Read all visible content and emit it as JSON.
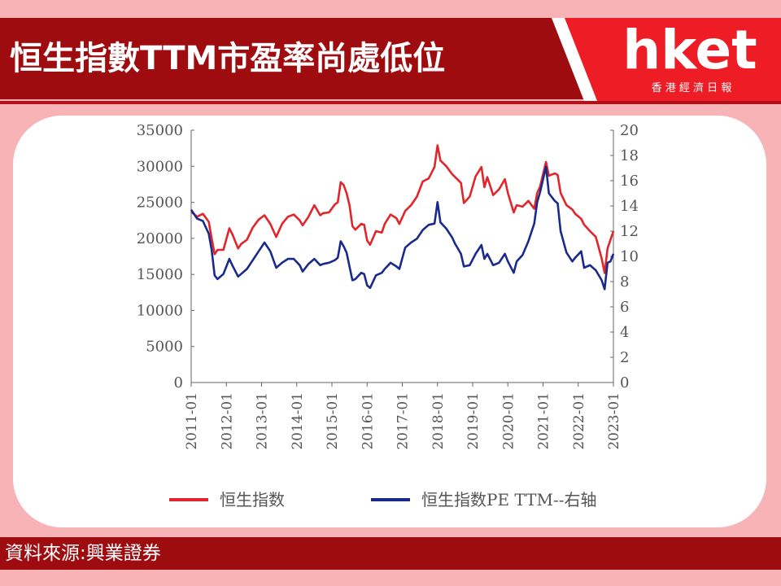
{
  "header": {
    "title": "恒生指數TTM市盈率尚處低位"
  },
  "logo": {
    "brand": "hket",
    "subtitle": "香 港 經 濟 日 報",
    "color": "#ee1c25"
  },
  "footer": {
    "source": "資料來源:興業證券"
  },
  "colors": {
    "series_red": "#e0262a",
    "series_blue": "#1a2a8c",
    "banner": "#9e0c10",
    "background": "#f7b3b5"
  },
  "chart_data": {
    "type": "line",
    "title": "",
    "x_ticks": [
      "2011-01",
      "2012-01",
      "2013-01",
      "2014-01",
      "2015-01",
      "2016-01",
      "2017-01",
      "2018-01",
      "2019-01",
      "2020-01",
      "2021-01",
      "2022-01",
      "2023-01"
    ],
    "y_left": {
      "min": 0,
      "max": 35000,
      "ticks": [
        0,
        5000,
        10000,
        15000,
        20000,
        25000,
        30000,
        35000
      ]
    },
    "y_right": {
      "min": 0,
      "max": 20,
      "ticks": [
        0,
        2,
        4,
        6,
        8,
        10,
        12,
        14,
        16,
        18,
        20
      ]
    },
    "legend_position": "bottom",
    "series": [
      {
        "name": "恒生指数",
        "axis": "left",
        "color": "#e0262a",
        "points": [
          [
            "2011-01",
            23700
          ],
          [
            "2011-03",
            23000
          ],
          [
            "2011-05",
            23400
          ],
          [
            "2011-07",
            22300
          ],
          [
            "2011-08",
            20000
          ],
          [
            "2011-09",
            17800
          ],
          [
            "2011-10",
            18400
          ],
          [
            "2011-12",
            18400
          ],
          [
            "2012-02",
            21400
          ],
          [
            "2012-03",
            20600
          ],
          [
            "2012-05",
            18600
          ],
          [
            "2012-06",
            19200
          ],
          [
            "2012-08",
            19800
          ],
          [
            "2012-10",
            21500
          ],
          [
            "2012-12",
            22600
          ],
          [
            "2013-02",
            23200
          ],
          [
            "2013-04",
            22000
          ],
          [
            "2013-06",
            20200
          ],
          [
            "2013-08",
            22000
          ],
          [
            "2013-10",
            23000
          ],
          [
            "2013-12",
            23300
          ],
          [
            "2014-02",
            22500
          ],
          [
            "2014-03",
            21800
          ],
          [
            "2014-05",
            23000
          ],
          [
            "2014-07",
            24600
          ],
          [
            "2014-09",
            23200
          ],
          [
            "2014-10",
            23500
          ],
          [
            "2014-12",
            23600
          ],
          [
            "2015-02",
            24700
          ],
          [
            "2015-03",
            25000
          ],
          [
            "2015-04",
            27800
          ],
          [
            "2015-05",
            27400
          ],
          [
            "2015-06",
            26300
          ],
          [
            "2015-07",
            24600
          ],
          [
            "2015-08",
            21700
          ],
          [
            "2015-09",
            21200
          ],
          [
            "2015-11",
            22000
          ],
          [
            "2015-12",
            21900
          ],
          [
            "2016-01",
            19700
          ],
          [
            "2016-02",
            19100
          ],
          [
            "2016-04",
            21000
          ],
          [
            "2016-06",
            20800
          ],
          [
            "2016-07",
            22000
          ],
          [
            "2016-09",
            23300
          ],
          [
            "2016-11",
            22800
          ],
          [
            "2016-12",
            22000
          ],
          [
            "2017-02",
            23800
          ],
          [
            "2017-04",
            24600
          ],
          [
            "2017-06",
            25800
          ],
          [
            "2017-08",
            27900
          ],
          [
            "2017-10",
            28300
          ],
          [
            "2017-12",
            29900
          ],
          [
            "2018-01",
            32900
          ],
          [
            "2018-02",
            30800
          ],
          [
            "2018-04",
            30000
          ],
          [
            "2018-06",
            28900
          ],
          [
            "2018-07",
            28500
          ],
          [
            "2018-09",
            27700
          ],
          [
            "2018-10",
            24900
          ],
          [
            "2018-12",
            25800
          ],
          [
            "2019-02",
            28600
          ],
          [
            "2019-04",
            29900
          ],
          [
            "2019-05",
            27100
          ],
          [
            "2019-06",
            28500
          ],
          [
            "2019-08",
            26000
          ],
          [
            "2019-10",
            26800
          ],
          [
            "2019-12",
            28200
          ],
          [
            "2020-01",
            26300
          ],
          [
            "2020-03",
            23600
          ],
          [
            "2020-04",
            24600
          ],
          [
            "2020-06",
            24400
          ],
          [
            "2020-08",
            25200
          ],
          [
            "2020-10",
            24100
          ],
          [
            "2020-11",
            26300
          ],
          [
            "2020-12",
            27200
          ],
          [
            "2021-02",
            30600
          ],
          [
            "2021-03",
            28700
          ],
          [
            "2021-05",
            29000
          ],
          [
            "2021-06",
            28800
          ],
          [
            "2021-07",
            26300
          ],
          [
            "2021-09",
            24600
          ],
          [
            "2021-11",
            24000
          ],
          [
            "2021-12",
            23400
          ],
          [
            "2022-02",
            22700
          ],
          [
            "2022-03",
            21900
          ],
          [
            "2022-05",
            21000
          ],
          [
            "2022-07",
            20200
          ],
          [
            "2022-09",
            17200
          ],
          [
            "2022-10",
            15200
          ],
          [
            "2022-11",
            18600
          ],
          [
            "2022-12",
            19800
          ],
          [
            "2023-01",
            21000
          ]
        ]
      },
      {
        "name": "恒生指数PE TTM--右轴",
        "axis": "right",
        "color": "#1a2a8c",
        "points": [
          [
            "2011-01",
            13.7
          ],
          [
            "2011-03",
            13.0
          ],
          [
            "2011-05",
            12.8
          ],
          [
            "2011-07",
            11.8
          ],
          [
            "2011-08",
            10.5
          ],
          [
            "2011-09",
            8.5
          ],
          [
            "2011-10",
            8.2
          ],
          [
            "2011-12",
            8.6
          ],
          [
            "2012-02",
            9.8
          ],
          [
            "2012-03",
            9.3
          ],
          [
            "2012-05",
            8.4
          ],
          [
            "2012-06",
            8.6
          ],
          [
            "2012-08",
            9.0
          ],
          [
            "2012-10",
            9.7
          ],
          [
            "2012-12",
            10.4
          ],
          [
            "2013-02",
            11.1
          ],
          [
            "2013-04",
            10.4
          ],
          [
            "2013-06",
            9.1
          ],
          [
            "2013-08",
            9.5
          ],
          [
            "2013-10",
            9.8
          ],
          [
            "2013-12",
            9.8
          ],
          [
            "2014-02",
            9.3
          ],
          [
            "2014-03",
            8.8
          ],
          [
            "2014-05",
            9.4
          ],
          [
            "2014-07",
            9.8
          ],
          [
            "2014-09",
            9.3
          ],
          [
            "2014-10",
            9.4
          ],
          [
            "2014-12",
            9.5
          ],
          [
            "2015-02",
            9.7
          ],
          [
            "2015-03",
            9.9
          ],
          [
            "2015-04",
            11.2
          ],
          [
            "2015-05",
            10.8
          ],
          [
            "2015-06",
            10.3
          ],
          [
            "2015-07",
            9.2
          ],
          [
            "2015-08",
            8.1
          ],
          [
            "2015-09",
            8.2
          ],
          [
            "2015-11",
            8.7
          ],
          [
            "2015-12",
            8.6
          ],
          [
            "2016-01",
            7.7
          ],
          [
            "2016-02",
            7.5
          ],
          [
            "2016-04",
            8.5
          ],
          [
            "2016-06",
            8.7
          ],
          [
            "2016-07",
            9.0
          ],
          [
            "2016-09",
            9.5
          ],
          [
            "2016-11",
            9.2
          ],
          [
            "2016-12",
            9.0
          ],
          [
            "2017-02",
            10.7
          ],
          [
            "2017-04",
            11.1
          ],
          [
            "2017-06",
            11.4
          ],
          [
            "2017-08",
            12.1
          ],
          [
            "2017-10",
            12.5
          ],
          [
            "2017-12",
            12.6
          ],
          [
            "2018-01",
            14.3
          ],
          [
            "2018-02",
            12.7
          ],
          [
            "2018-04",
            12.2
          ],
          [
            "2018-06",
            11.5
          ],
          [
            "2018-07",
            11.0
          ],
          [
            "2018-09",
            10.2
          ],
          [
            "2018-10",
            9.2
          ],
          [
            "2018-12",
            9.3
          ],
          [
            "2019-02",
            10.2
          ],
          [
            "2019-04",
            10.9
          ],
          [
            "2019-05",
            9.8
          ],
          [
            "2019-06",
            10.2
          ],
          [
            "2019-08",
            9.3
          ],
          [
            "2019-10",
            9.5
          ],
          [
            "2019-12",
            10.2
          ],
          [
            "2020-01",
            9.6
          ],
          [
            "2020-03",
            8.7
          ],
          [
            "2020-04",
            9.6
          ],
          [
            "2020-06",
            10.1
          ],
          [
            "2020-08",
            11.2
          ],
          [
            "2020-10",
            12.6
          ],
          [
            "2020-11",
            14.3
          ],
          [
            "2020-12",
            15.1
          ],
          [
            "2021-02",
            17.1
          ],
          [
            "2021-03",
            15.0
          ],
          [
            "2021-05",
            14.4
          ],
          [
            "2021-06",
            14.2
          ],
          [
            "2021-07",
            12.0
          ],
          [
            "2021-09",
            10.3
          ],
          [
            "2021-11",
            9.6
          ],
          [
            "2021-12",
            9.9
          ],
          [
            "2022-02",
            10.4
          ],
          [
            "2022-03",
            9.1
          ],
          [
            "2022-05",
            9.3
          ],
          [
            "2022-07",
            8.9
          ],
          [
            "2022-09",
            8.1
          ],
          [
            "2022-10",
            7.4
          ],
          [
            "2022-11",
            9.5
          ],
          [
            "2022-12",
            9.6
          ],
          [
            "2023-01",
            10.2
          ]
        ]
      }
    ]
  }
}
